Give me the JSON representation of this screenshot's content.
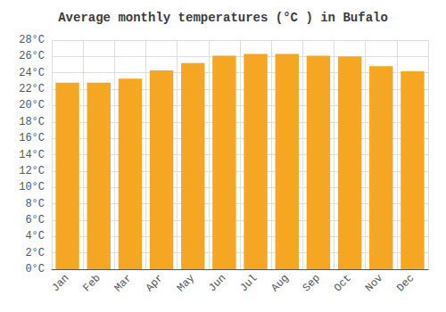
{
  "chart_data": {
    "type": "bar",
    "title": "Average monthly temperatures (°C ) in Bufalo",
    "categories": [
      "Jan",
      "Feb",
      "Mar",
      "Apr",
      "May",
      "Jun",
      "Jul",
      "Aug",
      "Sep",
      "Oct",
      "Nov",
      "Dec"
    ],
    "values": [
      22.8,
      22.8,
      23.3,
      24.3,
      25.2,
      26.1,
      26.3,
      26.3,
      26.1,
      26.0,
      24.8,
      24.2
    ],
    "color": "#F5A623",
    "ylim": [
      0,
      28
    ],
    "yticks": [
      {
        "value": 0,
        "label": "0°C"
      },
      {
        "value": 2,
        "label": "2°C"
      },
      {
        "value": 4,
        "label": "4°C"
      },
      {
        "value": 6,
        "label": "6°C"
      },
      {
        "value": 8,
        "label": "8°C"
      },
      {
        "value": 10,
        "label": "10°C"
      },
      {
        "value": 12,
        "label": "12°C"
      },
      {
        "value": 14,
        "label": "14°C"
      },
      {
        "value": 16,
        "label": "16°C"
      },
      {
        "value": 18,
        "label": "18°C"
      },
      {
        "value": 20,
        "label": "20°C"
      },
      {
        "value": 22,
        "label": "22°C"
      },
      {
        "value": 24,
        "label": "24°C"
      },
      {
        "value": 26,
        "label": "26°C"
      },
      {
        "value": 28,
        "label": "28°C"
      }
    ],
    "grid": true
  }
}
